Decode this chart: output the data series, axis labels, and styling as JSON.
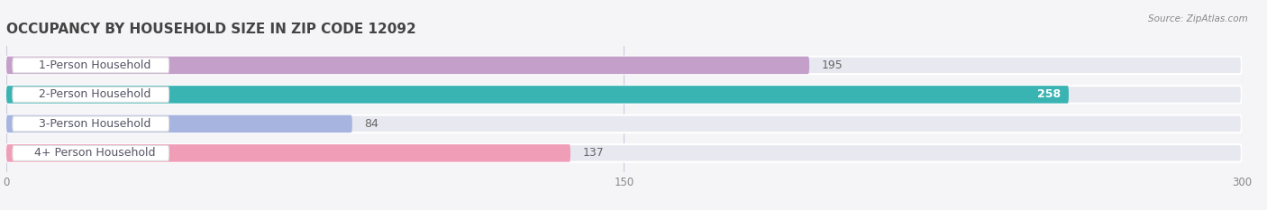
{
  "title": "OCCUPANCY BY HOUSEHOLD SIZE IN ZIP CODE 12092",
  "source": "Source: ZipAtlas.com",
  "categories": [
    "1-Person Household",
    "2-Person Household",
    "3-Person Household",
    "4+ Person Household"
  ],
  "values": [
    195,
    258,
    84,
    137
  ],
  "bar_colors": [
    "#c49fca",
    "#3ab3b3",
    "#a8b4e0",
    "#f09db8"
  ],
  "label_colors": [
    "#b080bc",
    "#2a9898",
    "#8898cc",
    "#e878a0"
  ],
  "background_color": "#f5f5f8",
  "bar_bg_color": "#e8e8f0",
  "xlim": [
    0,
    300
  ],
  "xticks": [
    0,
    150,
    300
  ],
  "label_fontsize": 9,
  "value_fontsize": 9,
  "title_fontsize": 11,
  "value_inside_bar": [
    false,
    true,
    false,
    false
  ]
}
